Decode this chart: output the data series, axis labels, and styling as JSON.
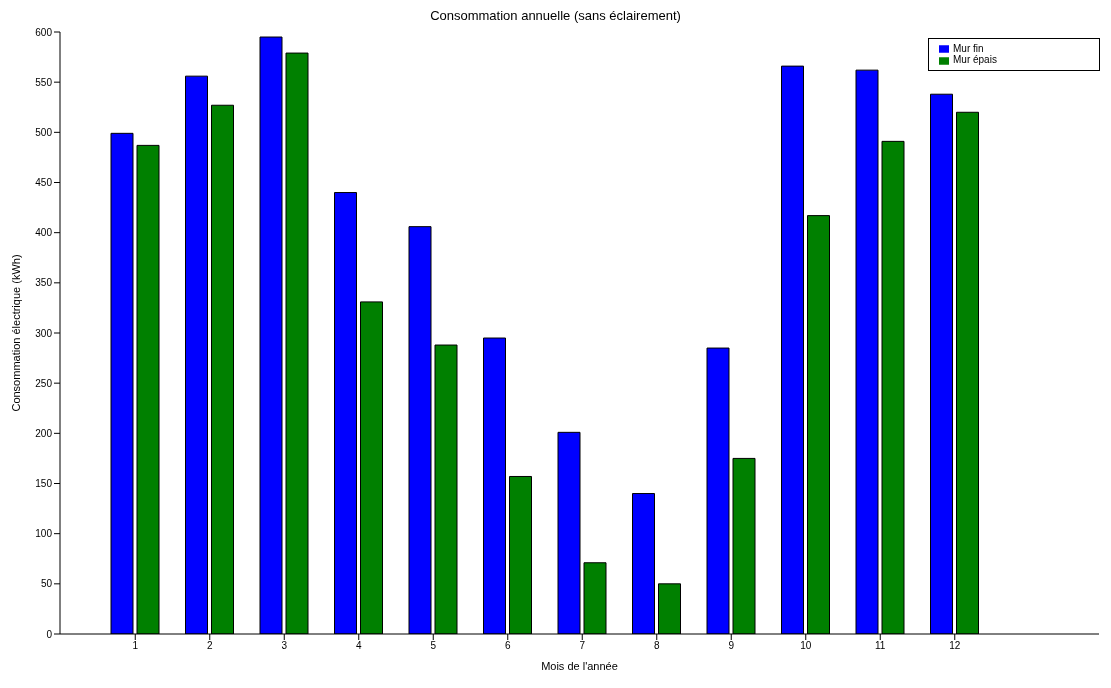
{
  "chart_data": {
    "type": "bar",
    "title": "Consommation annuelle (sans éclairement)",
    "xlabel": "Mois de l'année",
    "ylabel": "Consommation électrique (kWh)",
    "categories": [
      "1",
      "2",
      "3",
      "4",
      "5",
      "6",
      "7",
      "8",
      "9",
      "10",
      "11",
      "12"
    ],
    "series": [
      {
        "name": "Mur fin",
        "color": "#0000ff",
        "values": [
          499,
          556,
          595,
          440,
          406,
          295,
          201,
          140,
          285,
          566,
          562,
          538
        ]
      },
      {
        "name": "Mur épais",
        "color": "#008000",
        "values": [
          487,
          527,
          579,
          331,
          288,
          157,
          71,
          50,
          175,
          417,
          491,
          520
        ]
      }
    ],
    "ylim": [
      0,
      600
    ],
    "yticks": [
      0,
      50,
      100,
      150,
      200,
      250,
      300,
      350,
      400,
      450,
      500,
      550,
      600
    ],
    "grid": false,
    "legend": "top right"
  }
}
